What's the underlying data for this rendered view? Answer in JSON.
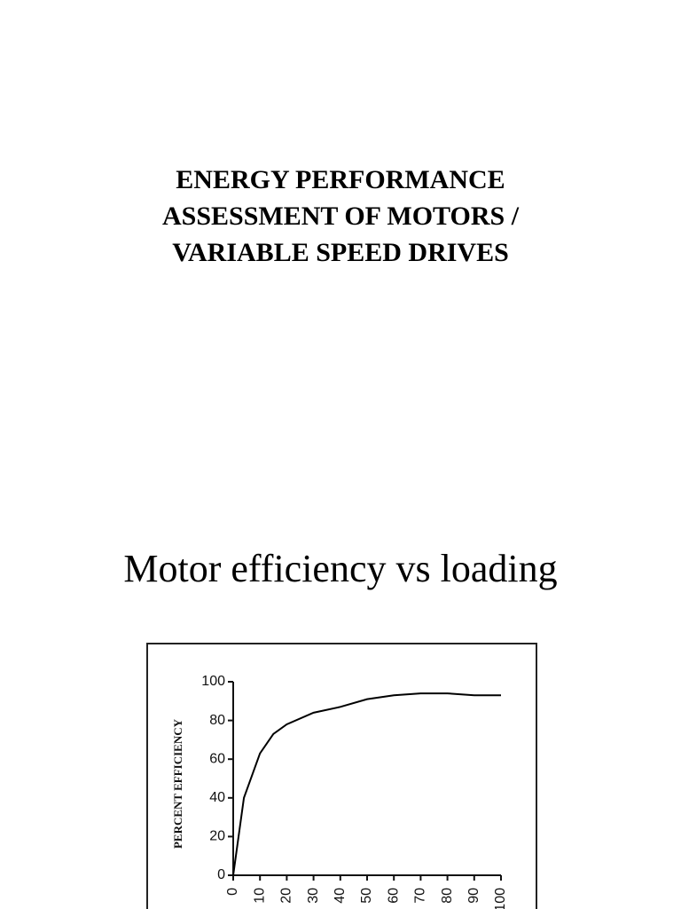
{
  "document": {
    "title_lines": [
      "ENERGY PERFORMANCE",
      "ASSESSMENT OF MOTORS /",
      "VARIABLE SPEED DRIVES"
    ],
    "caption": "Motor efficiency vs loading"
  },
  "chart_data": {
    "type": "line",
    "y_label": "PERCENT EFFICIENCY",
    "x": [
      0,
      4,
      10,
      15,
      20,
      30,
      40,
      50,
      60,
      70,
      80,
      90,
      100
    ],
    "series": [
      {
        "color": "#000000",
        "values": [
          0,
          40,
          63,
          73,
          78,
          84,
          87,
          91,
          93,
          94,
          94,
          93,
          93
        ]
      }
    ],
    "xlim": [
      0,
      100
    ],
    "xticks": [
      0,
      10,
      20,
      30,
      40,
      50,
      60,
      70,
      80,
      90,
      100
    ],
    "ylim": [
      0,
      100
    ],
    "yticks": [
      0,
      20,
      40,
      60,
      80,
      100
    ]
  }
}
